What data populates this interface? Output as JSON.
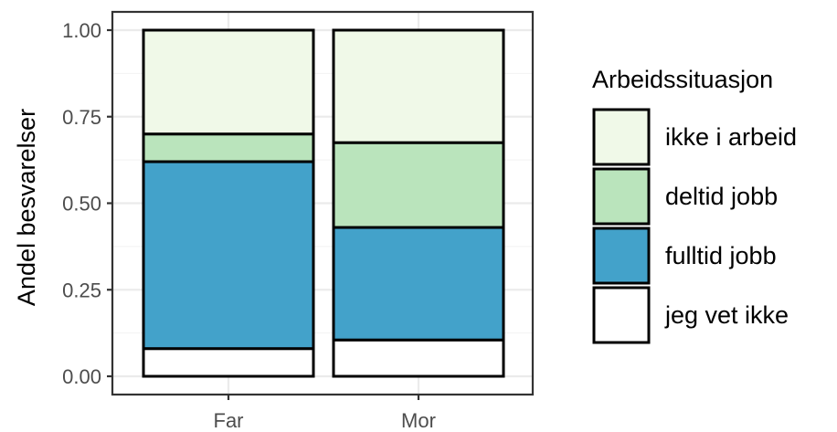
{
  "chart_data": {
    "type": "bar",
    "stacked": true,
    "categories": [
      "Far",
      "Mor"
    ],
    "ylabel": "Andel besvarelser",
    "xlabel": "",
    "ylim": [
      0,
      1
    ],
    "yticks": [
      "0.00",
      "0.25",
      "0.50",
      "0.75",
      "1.00"
    ],
    "grid": true,
    "legend": {
      "title": "Arbeidssituasjon",
      "position": "right"
    },
    "series": [
      {
        "name": "jeg vet ikke",
        "color": "#ffffff",
        "values": [
          0.08,
          0.105
        ]
      },
      {
        "name": "fulltid jobb",
        "color": "#43a2ca",
        "values": [
          0.54,
          0.325
        ]
      },
      {
        "name": "deltid jobb",
        "color": "#bae4bc",
        "values": [
          0.08,
          0.245
        ]
      },
      {
        "name": "ikke i arbeid",
        "color": "#f0f9e8",
        "values": [
          0.3,
          0.325
        ]
      }
    ],
    "legend_order": [
      "ikke i arbeid",
      "deltid jobb",
      "fulltid jobb",
      "jeg vet ikke"
    ]
  }
}
